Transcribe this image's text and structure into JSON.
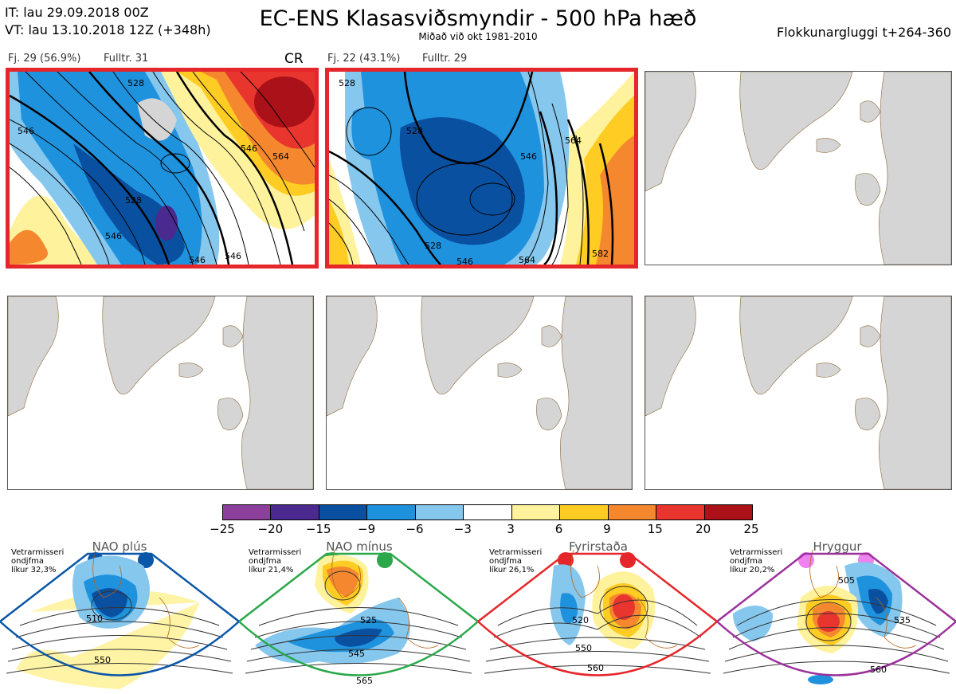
{
  "header": {
    "it_line": "IT: lau 29.09.2018 00Z",
    "vt_line": "VT: lau 13.10.2018 12Z  (+348h)",
    "title": "EC-ENS Klasasviðsmyndir - 500 hPa hæð",
    "subtitle": "Miðað við okt 1981-2010",
    "cluster_window": "Flokkunargluggi t+264-360"
  },
  "panels": [
    {
      "id": "cluster-1",
      "info_count": "Fj. 29 (56.9%)",
      "info_rep": "Fulltr. 31",
      "regime": "CR",
      "contour_labels": [
        "528",
        "546",
        "564",
        "546",
        "528",
        "546",
        "546",
        "546"
      ]
    },
    {
      "id": "cluster-2",
      "info_count": "Fj. 22 (43.1%)",
      "info_rep": "Fulltr. 29",
      "regime": "",
      "contour_labels": [
        "528",
        "528",
        "546",
        "564",
        "528",
        "546",
        "564",
        "582"
      ]
    }
  ],
  "colorbar": {
    "ticks": [
      "−25",
      "−20",
      "−15",
      "−9",
      "−6",
      "−3",
      "3",
      "6",
      "9",
      "15",
      "20",
      "25"
    ],
    "colors": [
      "#8c3f9b",
      "#4b2a8f",
      "#0a50a0",
      "#1f92de",
      "#86c7ee",
      "#ffffff",
      "#fff29c",
      "#fecc22",
      "#f5882e",
      "#e8362f",
      "#ab1118"
    ]
  },
  "regimes": [
    {
      "name": "NAO plús",
      "note": [
        "Vetrarmisseri",
        "ondjfma",
        "líkur 32,3%"
      ],
      "color": "#0a56a8",
      "labels": [
        "510",
        "550"
      ]
    },
    {
      "name": "NAO mínus",
      "note": [
        "Vetrarmisseri",
        "ondjfma",
        "líkur 21,4%"
      ],
      "color": "#2aa84a",
      "labels": [
        "525",
        "545",
        "565"
      ]
    },
    {
      "name": "Fyrirstaða",
      "note": [
        "Vetrarmisseri",
        "ondjfma",
        "líkur 26,1%"
      ],
      "color": "#e5262a",
      "labels": [
        "520",
        "550",
        "560"
      ]
    },
    {
      "name": "Hryggur",
      "note": [
        "Vetrarmisseri",
        "ondjfma",
        "líkur 20,2%"
      ],
      "color": "#9b319b",
      "labels": [
        "505",
        "535",
        "560"
      ]
    }
  ]
}
